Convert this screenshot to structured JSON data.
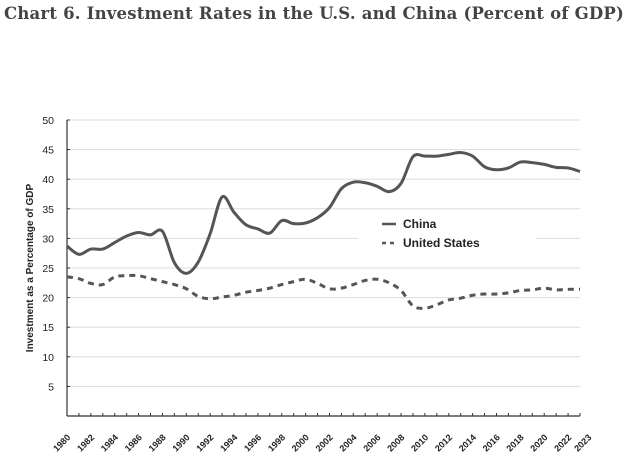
{
  "chart_data": {
    "type": "line",
    "title": "Chart 6. Investment Rates in the U.S. and China (Percent of GDP)",
    "ylabel": "Investment as a Percentage of GDP",
    "xlabel": "",
    "ylim": [
      0,
      50
    ],
    "yticks": [
      5,
      10,
      15,
      20,
      25,
      30,
      35,
      40,
      45,
      50
    ],
    "xlim": [
      1980,
      2023
    ],
    "xtick_labels": [
      "1980",
      "1982",
      "1984",
      "1986",
      "1988",
      "1990",
      "1992",
      "1994",
      "1996",
      "1998",
      "2000",
      "2002",
      "2004",
      "2006",
      "2008",
      "2010",
      "2012",
      "2014",
      "2016",
      "2018",
      "2020",
      "2022",
      "2023"
    ],
    "grid": "horizontal",
    "legend_placement": "center-right",
    "x": [
      1980,
      1981,
      1982,
      1983,
      1984,
      1985,
      1986,
      1987,
      1988,
      1989,
      1990,
      1991,
      1992,
      1993,
      1994,
      1995,
      1996,
      1997,
      1998,
      1999,
      2000,
      2001,
      2002,
      2003,
      2004,
      2005,
      2006,
      2007,
      2008,
      2009,
      2010,
      2011,
      2012,
      2013,
      2014,
      2015,
      2016,
      2017,
      2018,
      2019,
      2020,
      2021,
      2022,
      2023
    ],
    "series": [
      {
        "name": "China",
        "style": "solid",
        "color": "#555555",
        "values": [
          28.7,
          27.3,
          28.2,
          28.2,
          29.3,
          30.4,
          31.0,
          30.6,
          31.2,
          25.9,
          24.1,
          26.0,
          30.8,
          37.0,
          34.4,
          32.3,
          31.6,
          30.9,
          33.0,
          32.5,
          32.6,
          33.5,
          35.2,
          38.4,
          39.5,
          39.4,
          38.8,
          37.9,
          39.3,
          43.8,
          43.9,
          43.9,
          44.2,
          44.5,
          43.9,
          42.1,
          41.6,
          41.9,
          42.9,
          42.8,
          42.5,
          42.0,
          41.9,
          41.3
        ]
      },
      {
        "name": "United States",
        "style": "dashed",
        "color": "#555555",
        "values": [
          23.5,
          23.2,
          22.4,
          22.2,
          23.5,
          23.7,
          23.7,
          23.2,
          22.7,
          22.2,
          21.5,
          20.2,
          19.8,
          20.1,
          20.4,
          20.9,
          21.2,
          21.6,
          22.2,
          22.7,
          23.1,
          22.4,
          21.5,
          21.6,
          22.2,
          22.9,
          23.1,
          22.5,
          21.2,
          18.6,
          18.2,
          18.8,
          19.6,
          19.9,
          20.4,
          20.6,
          20.6,
          20.8,
          21.2,
          21.3,
          21.6,
          21.3,
          21.4,
          21.4
        ]
      }
    ]
  }
}
